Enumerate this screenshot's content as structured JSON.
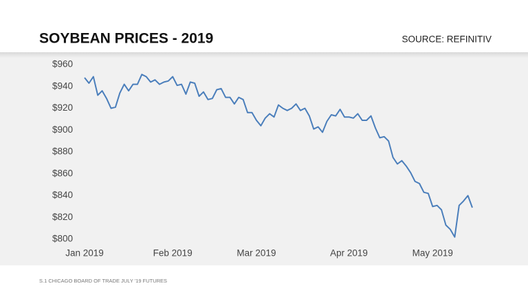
{
  "chart_data": {
    "type": "line",
    "title": "SOYBEAN PRICES - 2019",
    "source": "SOURCE: REFINITIV",
    "footnote": "S.1 CHICAGO BOARD OF TRADE JULY '19 FUTURES",
    "categories": [
      "Jan 2019",
      null,
      null,
      null,
      null,
      null,
      null,
      null,
      null,
      null,
      null,
      null,
      null,
      null,
      null,
      null,
      null,
      null,
      null,
      null,
      "Feb 2019",
      null,
      null,
      null,
      null,
      null,
      null,
      null,
      null,
      null,
      null,
      null,
      null,
      null,
      null,
      null,
      null,
      null,
      null,
      "Mar 2019",
      null,
      null,
      null,
      null,
      null,
      null,
      null,
      null,
      null,
      null,
      null,
      null,
      null,
      null,
      null,
      null,
      null,
      null,
      null,
      null,
      "Apr 2019",
      null,
      null,
      null,
      null,
      null,
      null,
      null,
      null,
      null,
      null,
      null,
      null,
      null,
      null,
      null,
      null,
      null,
      null,
      "May 2019",
      null,
      null,
      null,
      null,
      null,
      null,
      null,
      null,
      null
    ],
    "series": [
      {
        "color": "#4a7ebb",
        "values": [
          948,
          943,
          949,
          932,
          936,
          929,
          920,
          921,
          934,
          942,
          936,
          942,
          942,
          951,
          949,
          944,
          946,
          942,
          944,
          945,
          949,
          941,
          942,
          933,
          944,
          943,
          931,
          935,
          928,
          929,
          937,
          938,
          930,
          930,
          924,
          930,
          928,
          916,
          916,
          909,
          904,
          911,
          915,
          912,
          923,
          920,
          918,
          920,
          924,
          918,
          920,
          913,
          901,
          903,
          898,
          908,
          914,
          913,
          919,
          912,
          912,
          911,
          915,
          909,
          909,
          913,
          902,
          893,
          894,
          890,
          875,
          869,
          872,
          867,
          861,
          853,
          851,
          843,
          842,
          830,
          831,
          827,
          813,
          809,
          802,
          831,
          835,
          840,
          829
        ]
      }
    ],
    "ylim": [
      800,
      960
    ],
    "yticks": [
      {
        "value": 800,
        "label": "$800"
      },
      {
        "value": 820,
        "label": "$820"
      },
      {
        "value": 840,
        "label": "$840"
      },
      {
        "value": 860,
        "label": "$860"
      },
      {
        "value": 880,
        "label": "$880"
      },
      {
        "value": 900,
        "label": "$900"
      },
      {
        "value": 920,
        "label": "$920"
      },
      {
        "value": 940,
        "label": "$940"
      },
      {
        "value": 960,
        "label": "$960"
      }
    ],
    "grid": false
  }
}
